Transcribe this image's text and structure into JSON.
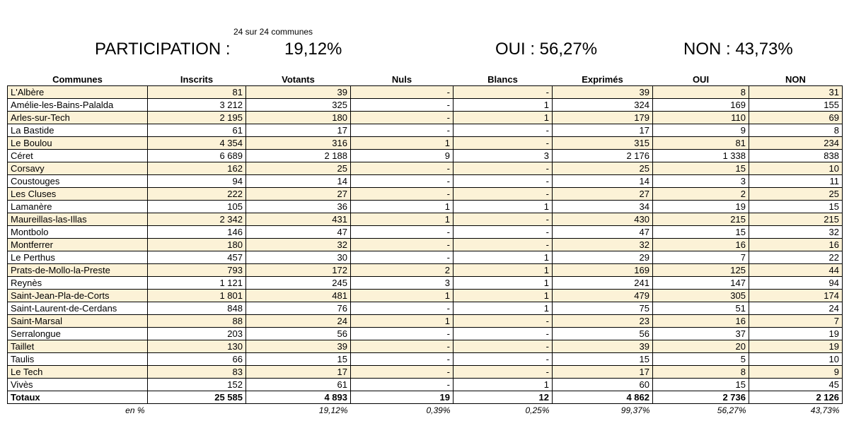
{
  "header": {
    "communes_count": "24  sur 24 communes",
    "participation_label": "PARTICIPATION :",
    "participation_value": "19,12%",
    "oui_summary": "OUI : 56,27%",
    "non_summary": "NON : 43,73%"
  },
  "columns": [
    "Communes",
    "Inscrits",
    "Votants",
    "Nuls",
    "Blancs",
    "Exprimés",
    "OUI",
    "NON"
  ],
  "rows": [
    [
      "L'Albère",
      "81",
      "39",
      "-",
      "-",
      "39",
      "8",
      "31"
    ],
    [
      "Amélie-les-Bains-Palalda",
      "3 212",
      "325",
      "-",
      "1",
      "324",
      "169",
      "155"
    ],
    [
      "Arles-sur-Tech",
      "2 195",
      "180",
      "-",
      "1",
      "179",
      "110",
      "69"
    ],
    [
      "La Bastide",
      "61",
      "17",
      "-",
      "-",
      "17",
      "9",
      "8"
    ],
    [
      "Le Boulou",
      "4 354",
      "316",
      "1",
      "-",
      "315",
      "81",
      "234"
    ],
    [
      "Céret",
      "6 689",
      "2 188",
      "9",
      "3",
      "2 176",
      "1 338",
      "838"
    ],
    [
      "Corsavy",
      "162",
      "25",
      "-",
      "-",
      "25",
      "15",
      "10"
    ],
    [
      "Coustouges",
      "94",
      "14",
      "-",
      "-",
      "14",
      "3",
      "11"
    ],
    [
      "Les Cluses",
      "222",
      "27",
      "-",
      "-",
      "27",
      "2",
      "25"
    ],
    [
      "Lamanère",
      "105",
      "36",
      "1",
      "1",
      "34",
      "19",
      "15"
    ],
    [
      "Maureillas-las-Illas",
      "2 342",
      "431",
      "1",
      "-",
      "430",
      "215",
      "215"
    ],
    [
      "Montbolo",
      "146",
      "47",
      "-",
      "-",
      "47",
      "15",
      "32"
    ],
    [
      "Montferrer",
      "180",
      "32",
      "-",
      "-",
      "32",
      "16",
      "16"
    ],
    [
      "Le Perthus",
      "457",
      "30",
      "-",
      "1",
      "29",
      "7",
      "22"
    ],
    [
      "Prats-de-Mollo-la-Preste",
      "793",
      "172",
      "2",
      "1",
      "169",
      "125",
      "44"
    ],
    [
      "Reynès",
      "1 121",
      "245",
      "3",
      "1",
      "241",
      "147",
      "94"
    ],
    [
      "Saint-Jean-Pla-de-Corts",
      "1 801",
      "481",
      "1",
      "1",
      "479",
      "305",
      "174"
    ],
    [
      "Saint-Laurent-de-Cerdans",
      "848",
      "76",
      "-",
      "1",
      "75",
      "51",
      "24"
    ],
    [
      "Saint-Marsal",
      "88",
      "24",
      "1",
      "-",
      "23",
      "16",
      "7"
    ],
    [
      "Serralongue",
      "203",
      "56",
      "-",
      "-",
      "56",
      "37",
      "19"
    ],
    [
      "Taillet",
      "130",
      "39",
      "-",
      "-",
      "39",
      "20",
      "19"
    ],
    [
      "Taulis",
      "66",
      "15",
      "-",
      "-",
      "15",
      "5",
      "10"
    ],
    [
      "Le Tech",
      "83",
      "17",
      "-",
      "-",
      "17",
      "8",
      "9"
    ],
    [
      "Vivès",
      "152",
      "61",
      "-",
      "1",
      "60",
      "15",
      "45"
    ]
  ],
  "totals": [
    "Totaux",
    "25 585",
    "4 893",
    "19",
    "12",
    "4 862",
    "2 736",
    "2 126"
  ],
  "percent": [
    "en %",
    "",
    "19,12%",
    "0,39%",
    "0,25%",
    "99,37%",
    "56,27%",
    "43,73%"
  ],
  "colors": {
    "alt_row": "#fcf2d7",
    "border": "#000000"
  }
}
